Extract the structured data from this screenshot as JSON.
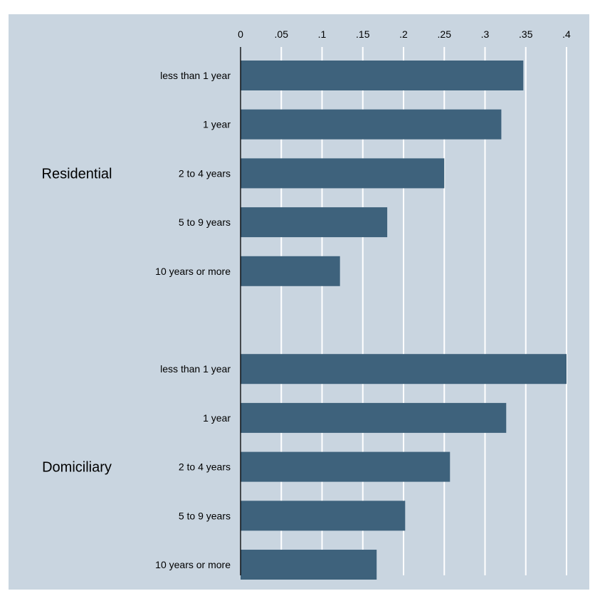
{
  "title": "",
  "colors": {
    "background": "#ffffff",
    "plot_background": "#c9d5e0",
    "bar": "#3e627c",
    "gridline": "#ffffff",
    "axis": "#000000",
    "text": "#000000"
  },
  "chart_data": {
    "type": "bar",
    "orientation": "horizontal",
    "title": "",
    "xlabel": "",
    "ylabel": "",
    "xlim": [
      0,
      0.4
    ],
    "x_ticks": [
      0,
      0.05,
      0.1,
      0.15,
      0.2,
      0.25,
      0.3,
      0.35,
      0.4
    ],
    "x_tick_labels": [
      "0",
      ".05",
      ".1",
      ".15",
      ".2",
      ".25",
      ".3",
      ".35",
      ".4"
    ],
    "x_axis_position": "top",
    "grid": true,
    "categories": [
      "less than 1 year",
      "1 year",
      "2 to 4 years",
      "5 to 9 years",
      "10 years or more"
    ],
    "groups": [
      {
        "name": "Residential",
        "values": [
          0.347,
          0.32,
          0.25,
          0.18,
          0.122
        ]
      },
      {
        "name": "Domiciliary",
        "values": [
          0.4,
          0.326,
          0.257,
          0.202,
          0.167
        ]
      }
    ]
  }
}
